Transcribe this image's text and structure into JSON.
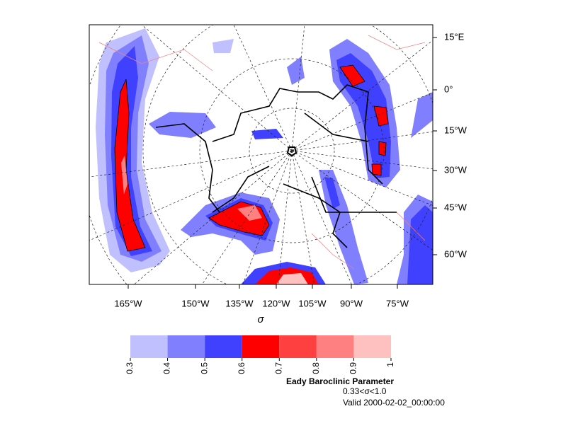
{
  "map": {
    "right_labels": [
      "15°E",
      "0°",
      "15°W",
      "30°W",
      "45°W",
      "60°W"
    ],
    "bottom_labels": [
      "165°W",
      "150°W",
      "135°W",
      "120°W",
      "105°W",
      "90°W",
      "75°W"
    ],
    "xlabel": "σ",
    "colorbar": {
      "levels": [
        0.3,
        0.4,
        0.5,
        0.6,
        0.7,
        0.8,
        0.9,
        1
      ],
      "colors": [
        "#c0c0ff",
        "#8080ff",
        "#4040ff",
        "#ff0000",
        "#ff4040",
        "#ff8080",
        "#ffc0c0"
      ]
    },
    "title": "Eady Baroclinic Parameter",
    "subtitle": "0.33<σ<1.0",
    "valid": "Valid 2000-02-02_00:00:00"
  }
}
